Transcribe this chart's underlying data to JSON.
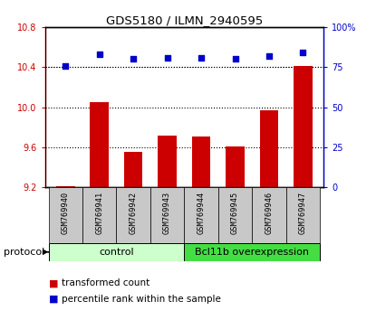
{
  "title": "GDS5180 / ILMN_2940595",
  "samples": [
    "GSM769940",
    "GSM769941",
    "GSM769942",
    "GSM769943",
    "GSM769944",
    "GSM769945",
    "GSM769946",
    "GSM769947"
  ],
  "bar_values": [
    9.21,
    10.05,
    9.55,
    9.72,
    9.71,
    9.61,
    9.97,
    10.41
  ],
  "dot_values": [
    76,
    83,
    80,
    81,
    81,
    80,
    82,
    84
  ],
  "ylim_left": [
    9.2,
    10.8
  ],
  "ylim_right": [
    0,
    100
  ],
  "yticks_left": [
    9.2,
    9.6,
    10.0,
    10.4,
    10.8
  ],
  "yticks_right": [
    0,
    25,
    50,
    75,
    100
  ],
  "bar_color": "#cc0000",
  "dot_color": "#0000cc",
  "bg_color": "#ffffff",
  "control_label": "control",
  "treatment_label": "Bcl11b overexpression",
  "protocol_label": "protocol",
  "legend_bar_label": "transformed count",
  "legend_dot_label": "percentile rank within the sample",
  "control_color": "#ccffcc",
  "treatment_color": "#44dd44",
  "sample_bg_color": "#c8c8c8",
  "bar_width": 0.55,
  "n_control": 4,
  "n_treatment": 4
}
